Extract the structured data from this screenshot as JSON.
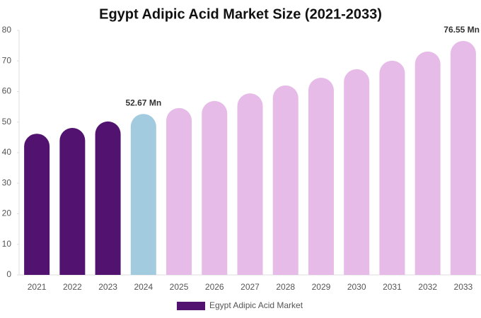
{
  "chart_data": {
    "type": "bar",
    "title": "Egypt Adipic Acid Market Size (2021-2033)",
    "categories": [
      "2021",
      "2022",
      "2023",
      "2024",
      "2025",
      "2026",
      "2027",
      "2028",
      "2029",
      "2030",
      "2031",
      "2032",
      "2033"
    ],
    "series": [
      {
        "name": "Egypt Adipic Acid Market",
        "color": "#521270",
        "values": [
          46.2,
          48.1,
          50.2,
          52.67,
          54.6,
          56.9,
          59.4,
          62.0,
          64.5,
          67.3,
          70.1,
          73.1,
          76.55
        ],
        "value_labels": [
          null,
          null,
          null,
          "52.67 Mn",
          null,
          null,
          null,
          null,
          null,
          null,
          null,
          null,
          "76.55 Mn"
        ],
        "colors": [
          "#521270",
          "#521270",
          "#521270",
          "#a3cbdf",
          "#e6bbe8",
          "#e6bbe8",
          "#e6bbe8",
          "#e6bbe8",
          "#e6bbe8",
          "#e6bbe8",
          "#e6bbe8",
          "#e6bbe8",
          "#e6bbe8"
        ]
      }
    ],
    "ylim": [
      0,
      80
    ],
    "yticks": [
      0,
      10,
      20,
      30,
      40,
      50,
      60,
      70,
      80
    ],
    "grid": false,
    "legend": "bottom"
  }
}
